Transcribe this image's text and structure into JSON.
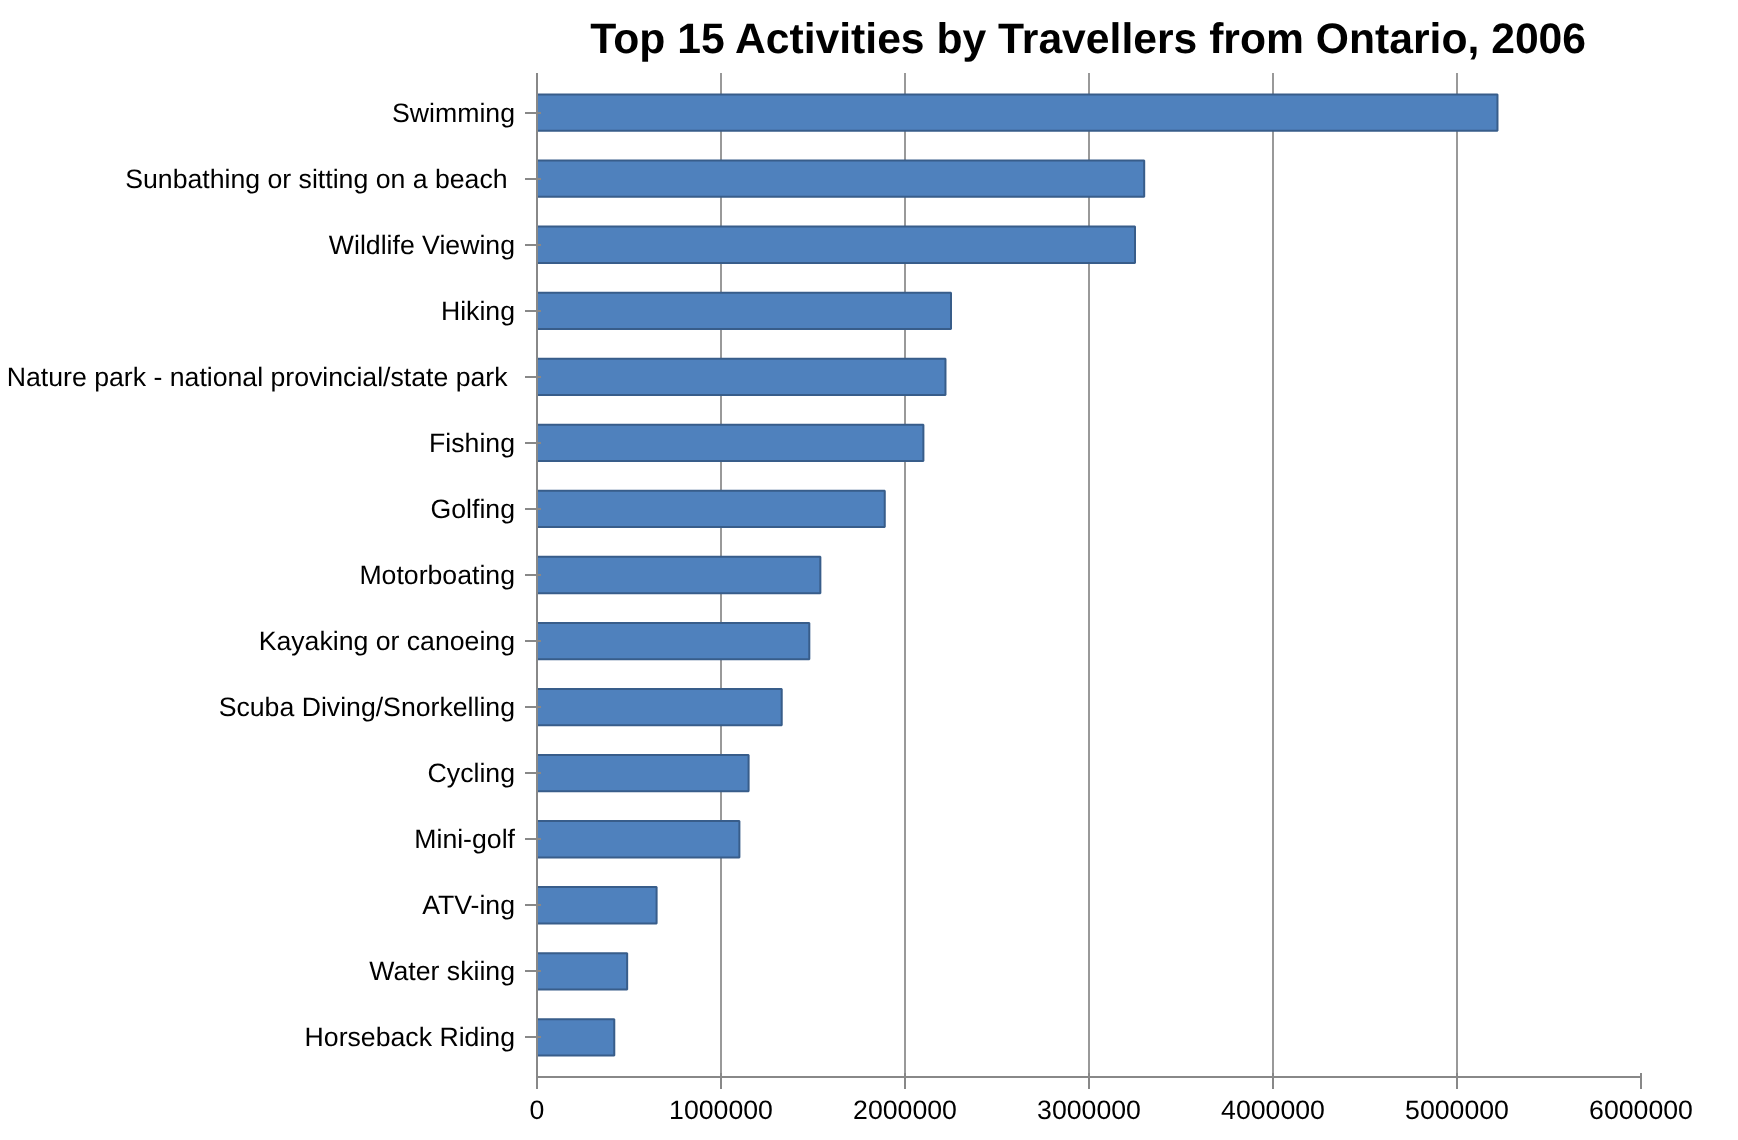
{
  "chart_data": {
    "type": "bar",
    "orientation": "horizontal",
    "title": "Top 15 Activities by Travellers from Ontario, 2006",
    "categories": [
      "Swimming",
      "Sunbathing or sitting  on a beach",
      "Wildlife Viewing",
      "Hiking",
      "Nature park - national  provincial/state park",
      "Fishing",
      "Golfing",
      "Motorboating",
      "Kayaking or canoeing",
      "Scuba Diving/Snorkelling",
      "Cycling",
      "Mini-golf",
      "ATV-ing",
      "Water skiing",
      "Horseback Riding"
    ],
    "values": [
      5220000,
      3300000,
      3250000,
      2250000,
      2220000,
      2100000,
      1890000,
      1540000,
      1480000,
      1330000,
      1150000,
      1100000,
      650000,
      490000,
      420000
    ],
    "color": "#4f81bd",
    "xlim": [
      0,
      6000000
    ],
    "xticks": [
      0,
      1000000,
      2000000,
      3000000,
      4000000,
      5000000,
      6000000
    ],
    "grid": "x"
  }
}
